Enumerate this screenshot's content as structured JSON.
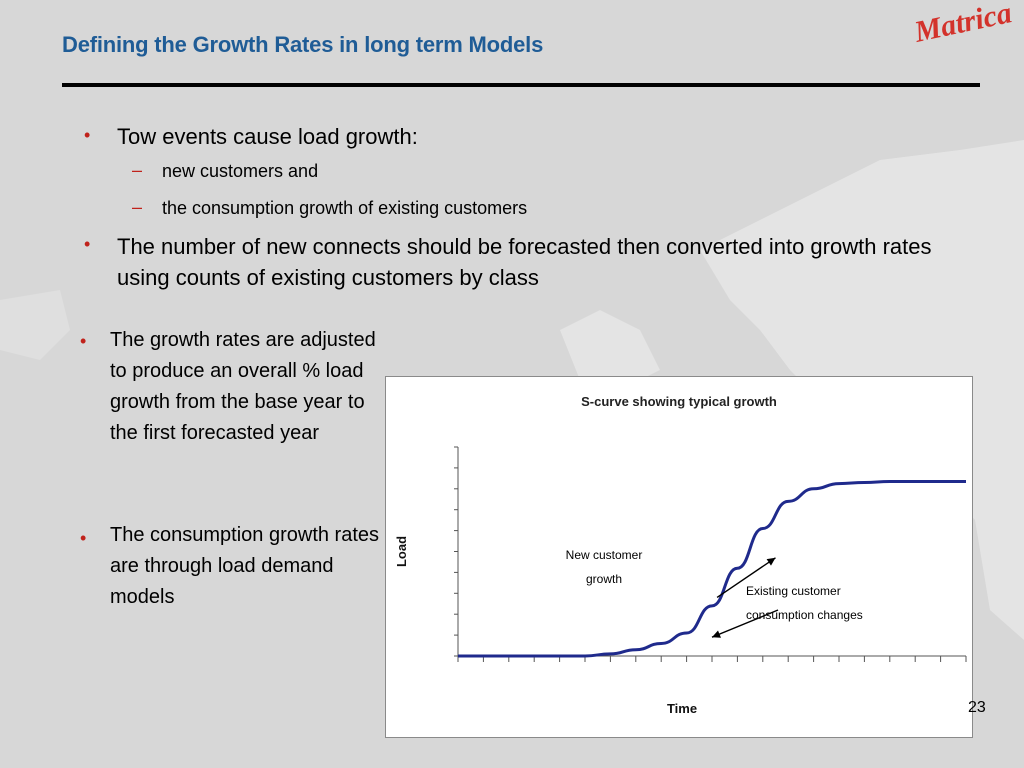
{
  "slide": {
    "title": "Defining the Growth Rates in long term Models",
    "logo": "Matrica",
    "page_number": "23"
  },
  "bullets_top": [
    {
      "text": "Tow events cause load growth:",
      "sub": [
        "new customers and",
        "the consumption growth of existing customers"
      ]
    },
    {
      "text": "The number of new connects should be forecasted then converted into growth rates using counts of existing customers by class"
    }
  ],
  "bullets_left": [
    "The growth rates are adjusted to produce an overall % load growth from the base year to the first forecasted year",
    "The consumption growth rates are through load demand models"
  ],
  "colors": {
    "title": "#1f5c96",
    "bullet": "#c0221b",
    "curve": "#1f2a8c",
    "logo": "#d3322b"
  },
  "chart_data": {
    "type": "line",
    "title": "S-curve showing typical growth",
    "xlabel": "Time",
    "ylabel": "Load",
    "x": [
      0,
      1,
      2,
      3,
      4,
      5,
      6,
      7,
      8,
      9,
      10,
      11,
      12,
      13,
      14,
      15,
      16,
      17,
      18,
      19,
      20
    ],
    "series": [
      {
        "values": [
          0,
          0,
          0,
          0,
          0,
          0,
          0.1,
          0.3,
          0.6,
          1.1,
          2.4,
          4.2,
          6.1,
          7.4,
          8.0,
          8.25,
          8.3,
          8.35,
          8.35,
          8.35,
          8.35
        ]
      }
    ],
    "xlim": [
      0,
      20
    ],
    "ylim": [
      0,
      10
    ],
    "annotations": [
      {
        "text_lines": [
          "New customer",
          "growth"
        ],
        "arrow_from": [
          10.2,
          2.8
        ],
        "arrow_to": [
          12.5,
          4.7
        ]
      },
      {
        "text_lines": [
          "Existing customer",
          "consumption changes"
        ],
        "arrow_from": [
          12.6,
          2.2
        ],
        "arrow_to": [
          10.0,
          0.9
        ]
      }
    ]
  }
}
